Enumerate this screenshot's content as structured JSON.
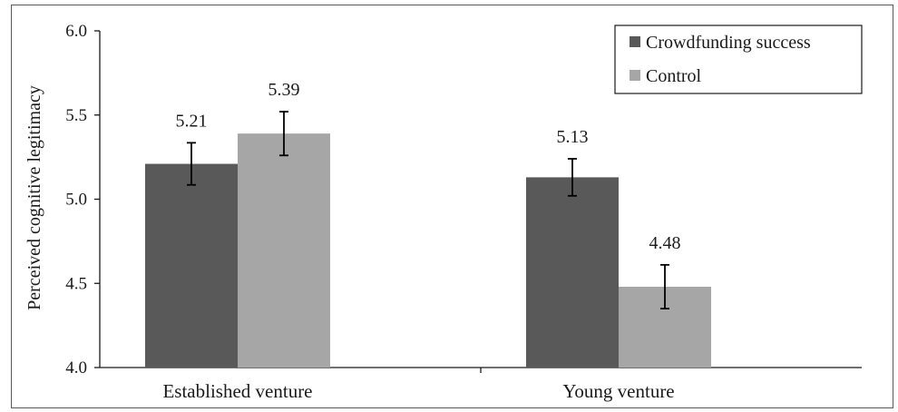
{
  "chart_data": {
    "type": "bar",
    "title": "",
    "xlabel": "",
    "ylabel": "Perceived cognitive legitimacy",
    "ylim": [
      4.0,
      6.0
    ],
    "yticks": [
      "4.0",
      "4.5",
      "5.0",
      "5.5",
      "6.0"
    ],
    "ytick_values": [
      4.0,
      4.5,
      5.0,
      5.5,
      6.0
    ],
    "categories": [
      "Established venture",
      "Young venture"
    ],
    "series": [
      {
        "name": "Crowdfunding success",
        "color": "#595959",
        "values": [
          5.21,
          5.13
        ],
        "labels": [
          "5.21",
          "5.13"
        ],
        "error": [
          0.125,
          0.11
        ]
      },
      {
        "name": "Control",
        "color": "#a6a6a6",
        "values": [
          5.39,
          4.48
        ],
        "labels": [
          "5.39",
          "4.48"
        ],
        "error": [
          0.13,
          0.13
        ]
      }
    ],
    "grid": false,
    "legend_position": "top-right"
  }
}
